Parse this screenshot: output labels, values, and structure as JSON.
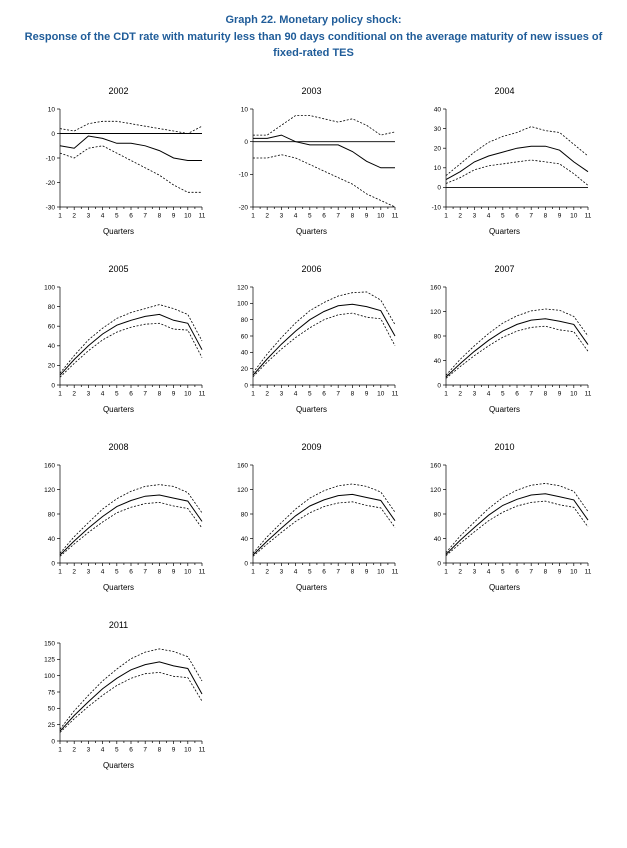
{
  "page": {
    "title_line1": "Graph 22. Monetary policy shock:",
    "title_line2": "Response of the CDT rate with maturity less than 90 days conditional on the average maturity of new issues of fixed-rated TES",
    "accent_color": "#1f5c99"
  },
  "chart_data": [
    {
      "type": "line",
      "title": "2002",
      "xlabel": "Quarters",
      "x": [
        1,
        2,
        3,
        4,
        5,
        6,
        7,
        8,
        9,
        10,
        11
      ],
      "ylim": [
        -30,
        10
      ],
      "yticks": [
        10,
        0,
        -10,
        -20,
        -30
      ],
      "zero_line": true,
      "series": [
        {
          "name": "upper-band",
          "style": "dashed",
          "values": [
            2,
            1,
            4,
            5,
            5,
            4,
            3,
            2,
            1,
            0,
            3
          ]
        },
        {
          "name": "response",
          "style": "solid",
          "values": [
            -5,
            -6,
            -1,
            -2,
            -4,
            -4,
            -5,
            -7,
            -10,
            -11,
            -11
          ]
        },
        {
          "name": "lower-band",
          "style": "dashed",
          "values": [
            -8,
            -10,
            -6,
            -5,
            -8,
            -11,
            -14,
            -17,
            -21,
            -24,
            -24
          ]
        }
      ]
    },
    {
      "type": "line",
      "title": "2003",
      "xlabel": "Quarters",
      "x": [
        1,
        2,
        3,
        4,
        5,
        6,
        7,
        8,
        9,
        10,
        11
      ],
      "ylim": [
        -20,
        10
      ],
      "yticks": [
        10,
        0,
        -10,
        -20
      ],
      "zero_line": true,
      "series": [
        {
          "name": "upper-band",
          "style": "dashed",
          "values": [
            2,
            2,
            5,
            8,
            8,
            7,
            6,
            7,
            5,
            2,
            3
          ]
        },
        {
          "name": "response",
          "style": "solid",
          "values": [
            1,
            1,
            2,
            0,
            -1,
            -1,
            -1,
            -3,
            -6,
            -8,
            -8
          ]
        },
        {
          "name": "lower-band",
          "style": "dashed",
          "values": [
            -5,
            -5,
            -4,
            -5,
            -7,
            -9,
            -11,
            -13,
            -16,
            -18,
            -20
          ]
        }
      ]
    },
    {
      "type": "line",
      "title": "2004",
      "xlabel": "Quarters",
      "x": [
        1,
        2,
        3,
        4,
        5,
        6,
        7,
        8,
        9,
        10,
        11
      ],
      "ylim": [
        -10,
        40
      ],
      "yticks": [
        40,
        30,
        20,
        10,
        0,
        -10
      ],
      "zero_line": true,
      "series": [
        {
          "name": "upper-band",
          "style": "dashed",
          "values": [
            6,
            12,
            18,
            23,
            26,
            28,
            31,
            29,
            28,
            22,
            16
          ]
        },
        {
          "name": "response",
          "style": "solid",
          "values": [
            4,
            8,
            13,
            16,
            18,
            20,
            21,
            21,
            19,
            13,
            8
          ]
        },
        {
          "name": "lower-band",
          "style": "dashed",
          "values": [
            2,
            5,
            9,
            11,
            12,
            13,
            14,
            13,
            12,
            7,
            1
          ]
        }
      ]
    },
    {
      "type": "line",
      "title": "2005",
      "xlabel": "Quarters",
      "x": [
        1,
        2,
        3,
        4,
        5,
        6,
        7,
        8,
        9,
        10,
        11
      ],
      "ylim": [
        0,
        100
      ],
      "yticks": [
        100,
        80,
        60,
        40,
        20,
        0
      ],
      "zero_line": false,
      "series": [
        {
          "name": "upper-band",
          "style": "dashed",
          "values": [
            12,
            30,
            46,
            58,
            68,
            74,
            78,
            82,
            78,
            72,
            45
          ]
        },
        {
          "name": "response",
          "style": "solid",
          "values": [
            10,
            26,
            40,
            52,
            61,
            66,
            70,
            72,
            66,
            63,
            36
          ]
        },
        {
          "name": "lower-band",
          "style": "dashed",
          "values": [
            8,
            22,
            35,
            46,
            54,
            59,
            62,
            63,
            57,
            56,
            28
          ]
        }
      ]
    },
    {
      "type": "line",
      "title": "2006",
      "xlabel": "Quarters",
      "x": [
        1,
        2,
        3,
        4,
        5,
        6,
        7,
        8,
        9,
        10,
        11
      ],
      "ylim": [
        0,
        120
      ],
      "yticks": [
        120,
        100,
        80,
        60,
        40,
        20,
        0
      ],
      "zero_line": false,
      "series": [
        {
          "name": "upper-band",
          "style": "dashed",
          "values": [
            15,
            38,
            58,
            76,
            91,
            101,
            109,
            113,
            114,
            104,
            74
          ]
        },
        {
          "name": "response",
          "style": "solid",
          "values": [
            12,
            32,
            50,
            66,
            80,
            90,
            97,
            99,
            96,
            91,
            60
          ]
        },
        {
          "name": "lower-band",
          "style": "dashed",
          "values": [
            10,
            28,
            44,
            58,
            70,
            80,
            86,
            88,
            83,
            81,
            48
          ]
        }
      ]
    },
    {
      "type": "line",
      "title": "2007",
      "xlabel": "Quarters",
      "x": [
        1,
        2,
        3,
        4,
        5,
        6,
        7,
        8,
        9,
        10,
        11
      ],
      "ylim": [
        0,
        160
      ],
      "yticks": [
        160,
        120,
        80,
        40,
        0
      ],
      "zero_line": false,
      "series": [
        {
          "name": "upper-band",
          "style": "dashed",
          "values": [
            16,
            42,
            64,
            84,
            101,
            113,
            121,
            124,
            122,
            112,
            80
          ]
        },
        {
          "name": "response",
          "style": "solid",
          "values": [
            13,
            35,
            55,
            73,
            88,
            99,
            106,
            108,
            104,
            99,
            66
          ]
        },
        {
          "name": "lower-band",
          "style": "dashed",
          "values": [
            11,
            30,
            48,
            64,
            78,
            88,
            94,
            96,
            90,
            87,
            55
          ]
        }
      ]
    },
    {
      "type": "line",
      "title": "2008",
      "xlabel": "Quarters",
      "x": [
        1,
        2,
        3,
        4,
        5,
        6,
        7,
        8,
        9,
        10,
        11
      ],
      "ylim": [
        0,
        160
      ],
      "yticks": [
        160,
        120,
        80,
        40,
        0
      ],
      "zero_line": false,
      "series": [
        {
          "name": "upper-band",
          "style": "dashed",
          "values": [
            16,
            43,
            66,
            88,
            105,
            117,
            125,
            128,
            125,
            115,
            82
          ]
        },
        {
          "name": "response",
          "style": "solid",
          "values": [
            13,
            36,
            57,
            76,
            92,
            102,
            109,
            111,
            106,
            101,
            68
          ]
        },
        {
          "name": "lower-band",
          "style": "dashed",
          "values": [
            11,
            31,
            50,
            67,
            82,
            91,
            97,
            99,
            93,
            89,
            57
          ]
        }
      ]
    },
    {
      "type": "line",
      "title": "2009",
      "xlabel": "Quarters",
      "x": [
        1,
        2,
        3,
        4,
        5,
        6,
        7,
        8,
        9,
        10,
        11
      ],
      "ylim": [
        0,
        160
      ],
      "yticks": [
        160,
        120,
        80,
        40,
        0
      ],
      "zero_line": false,
      "series": [
        {
          "name": "upper-band",
          "style": "dashed",
          "values": [
            16,
            43,
            66,
            88,
            106,
            118,
            126,
            129,
            125,
            116,
            83
          ]
        },
        {
          "name": "response",
          "style": "solid",
          "values": [
            13,
            36,
            57,
            77,
            93,
            103,
            110,
            112,
            107,
            102,
            69
          ]
        },
        {
          "name": "lower-band",
          "style": "dashed",
          "values": [
            11,
            31,
            50,
            68,
            82,
            92,
            98,
            100,
            94,
            90,
            58
          ]
        }
      ]
    },
    {
      "type": "line",
      "title": "2010",
      "xlabel": "Quarters",
      "x": [
        1,
        2,
        3,
        4,
        5,
        6,
        7,
        8,
        9,
        10,
        11
      ],
      "ylim": [
        0,
        160
      ],
      "yticks": [
        160,
        120,
        80,
        40,
        0
      ],
      "zero_line": false,
      "series": [
        {
          "name": "upper-band",
          "style": "dashed",
          "values": [
            17,
            44,
            67,
            89,
            107,
            119,
            127,
            130,
            126,
            117,
            84
          ]
        },
        {
          "name": "response",
          "style": "solid",
          "values": [
            14,
            37,
            58,
            78,
            94,
            104,
            111,
            113,
            108,
            103,
            70
          ]
        },
        {
          "name": "lower-band",
          "style": "dashed",
          "values": [
            12,
            32,
            51,
            69,
            83,
            93,
            99,
            101,
            95,
            91,
            59
          ]
        }
      ]
    },
    {
      "type": "line",
      "title": "2011",
      "xlabel": "Quarters",
      "x": [
        1,
        2,
        3,
        4,
        5,
        6,
        7,
        8,
        9,
        10,
        11
      ],
      "ylim": [
        0,
        150
      ],
      "yticks": [
        150,
        125,
        100,
        75,
        50,
        25,
        0
      ],
      "zero_line": false,
      "series": [
        {
          "name": "upper-band",
          "style": "dashed",
          "values": [
            18,
            46,
            70,
            92,
            110,
            126,
            136,
            141,
            137,
            129,
            92
          ]
        },
        {
          "name": "response",
          "style": "solid",
          "values": [
            15,
            39,
            60,
            80,
            96,
            109,
            117,
            121,
            115,
            111,
            72
          ]
        },
        {
          "name": "lower-band",
          "style": "dashed",
          "values": [
            13,
            34,
            53,
            70,
            85,
            96,
            103,
            105,
            99,
            97,
            61
          ]
        }
      ]
    }
  ]
}
